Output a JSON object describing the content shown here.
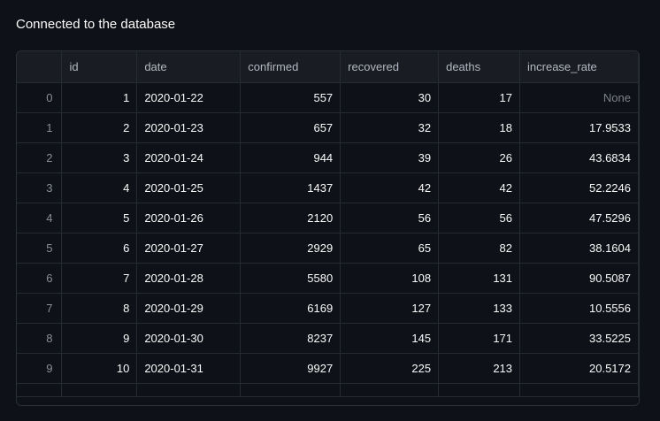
{
  "status_message": "Connected to the database",
  "table": {
    "columns": [
      "",
      "id",
      "date",
      "confirmed",
      "recovered",
      "deaths",
      "increase_rate"
    ],
    "rows": [
      {
        "idx": "0",
        "id": "1",
        "date": "2020-01-22",
        "confirmed": "557",
        "recovered": "30",
        "deaths": "17",
        "increase_rate": "None"
      },
      {
        "idx": "1",
        "id": "2",
        "date": "2020-01-23",
        "confirmed": "657",
        "recovered": "32",
        "deaths": "18",
        "increase_rate": "17.9533"
      },
      {
        "idx": "2",
        "id": "3",
        "date": "2020-01-24",
        "confirmed": "944",
        "recovered": "39",
        "deaths": "26",
        "increase_rate": "43.6834"
      },
      {
        "idx": "3",
        "id": "4",
        "date": "2020-01-25",
        "confirmed": "1437",
        "recovered": "42",
        "deaths": "42",
        "increase_rate": "52.2246"
      },
      {
        "idx": "4",
        "id": "5",
        "date": "2020-01-26",
        "confirmed": "2120",
        "recovered": "56",
        "deaths": "56",
        "increase_rate": "47.5296"
      },
      {
        "idx": "5",
        "id": "6",
        "date": "2020-01-27",
        "confirmed": "2929",
        "recovered": "65",
        "deaths": "82",
        "increase_rate": "38.1604"
      },
      {
        "idx": "6",
        "id": "7",
        "date": "2020-01-28",
        "confirmed": "5580",
        "recovered": "108",
        "deaths": "131",
        "increase_rate": "90.5087"
      },
      {
        "idx": "7",
        "id": "8",
        "date": "2020-01-29",
        "confirmed": "6169",
        "recovered": "127",
        "deaths": "133",
        "increase_rate": "10.5556"
      },
      {
        "idx": "8",
        "id": "9",
        "date": "2020-01-30",
        "confirmed": "8237",
        "recovered": "145",
        "deaths": "171",
        "increase_rate": "33.5225"
      },
      {
        "idx": "9",
        "id": "10",
        "date": "2020-01-31",
        "confirmed": "9927",
        "recovered": "225",
        "deaths": "213",
        "increase_rate": "20.5172"
      }
    ]
  },
  "colors": {
    "background": "#0e1117",
    "header_background": "#1a1c24",
    "grid_line": "#262a33",
    "text": "#fafafa",
    "muted_text": "#8b8f99"
  }
}
